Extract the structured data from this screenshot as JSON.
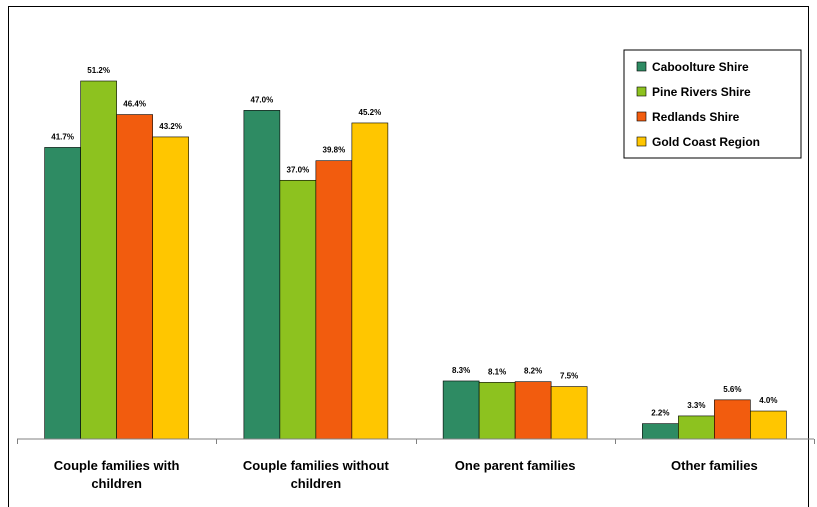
{
  "chart_data": {
    "type": "bar",
    "title": "",
    "xlabel": "",
    "ylabel": "",
    "ylim": [
      0,
      55
    ],
    "grid": false,
    "legend_position": "top-right",
    "categories": [
      [
        "Couple families with",
        "children"
      ],
      [
        "Couple families without",
        "children"
      ],
      [
        "One parent families"
      ],
      [
        "Other families"
      ]
    ],
    "series": [
      {
        "name": "Caboolture Shire",
        "color": "#2E8B63",
        "values": [
          41.7,
          47.0,
          8.3,
          2.2
        ],
        "labels": [
          "41.7%",
          "47.0%",
          "8.3%",
          "2.2%"
        ]
      },
      {
        "name": "Pine Rivers Shire",
        "color": "#8DC21F",
        "values": [
          51.2,
          37.0,
          8.1,
          3.3
        ],
        "labels": [
          "51.2%",
          "37.0%",
          "8.1%",
          "3.3%"
        ]
      },
      {
        "name": "Redlands Shire",
        "color": "#F25C0E",
        "values": [
          46.4,
          39.8,
          8.2,
          5.6
        ],
        "labels": [
          "46.4%",
          "39.8%",
          "8.2%",
          "5.6%"
        ]
      },
      {
        "name": "Gold Coast Region",
        "color": "#FFC600",
        "values": [
          43.2,
          45.2,
          7.5,
          4.0
        ],
        "labels": [
          "43.2%",
          "45.2%",
          "7.5%",
          "4.0%"
        ]
      }
    ]
  }
}
